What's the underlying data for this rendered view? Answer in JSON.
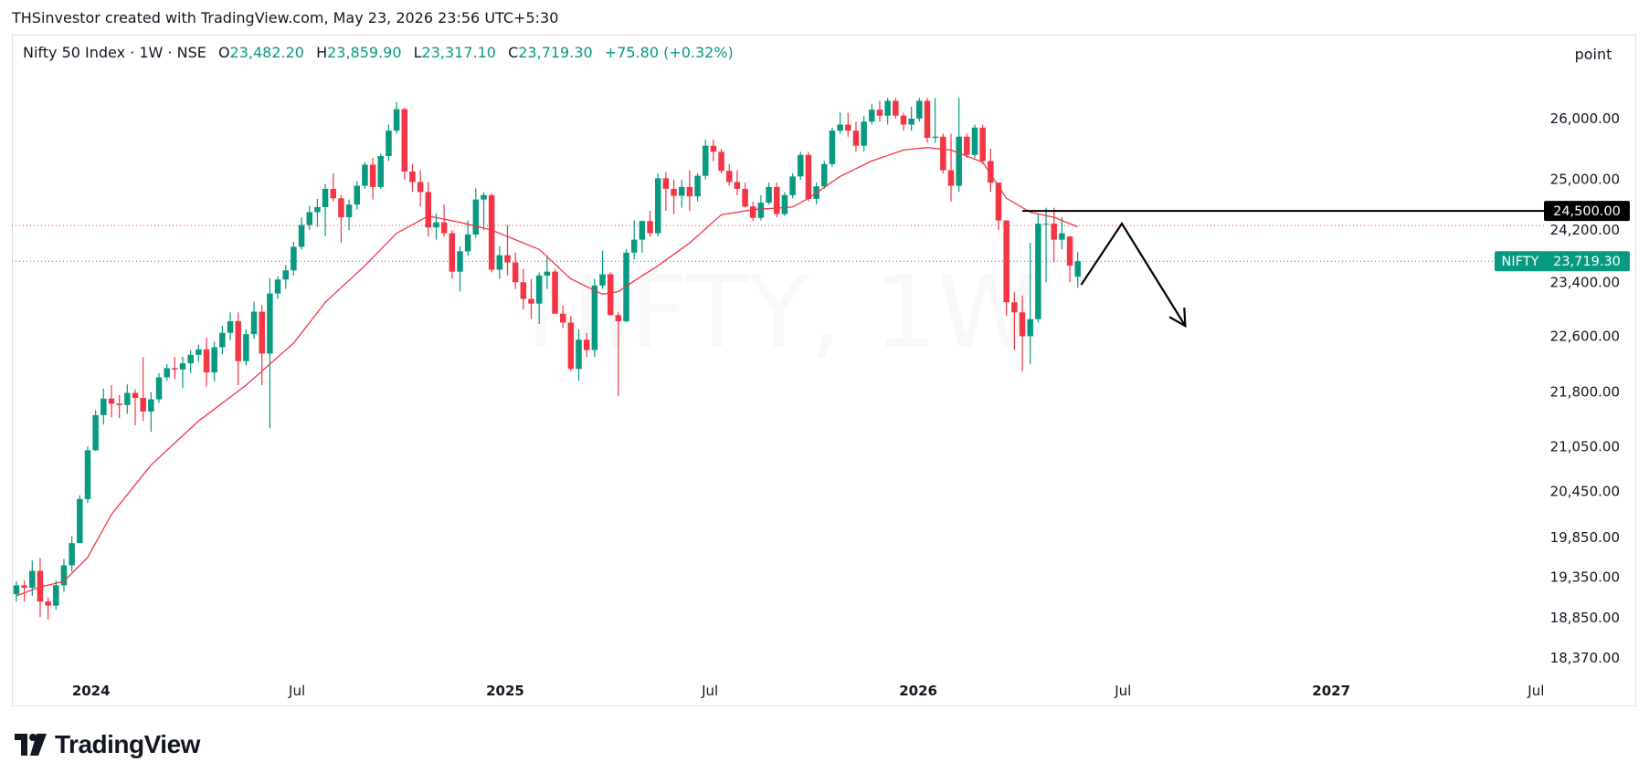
{
  "header": {
    "credit": "THSinvestor created with TradingView.com, May 23, 2026 23:56 UTC+5:30"
  },
  "legend": {
    "symbol": "Nifty 50 Index · 1W · NSE",
    "open_label": "O",
    "open": "23,482.20",
    "high_label": "H",
    "high": "23,859.90",
    "low_label": "L",
    "low": "23,317.10",
    "close_label": "C",
    "close": "23,719.30",
    "change": "+75.80 (+0.32%)"
  },
  "unit_label": "point",
  "watermark": "NIFTY, 1W",
  "brand": {
    "name": "TradingView"
  },
  "price_tags": {
    "resistance": {
      "label": "24,500.00",
      "value": 24500
    },
    "last": {
      "symbol": "NIFTY",
      "label": "23,719.30",
      "value": 23719.3
    }
  },
  "colors": {
    "up": "#089981",
    "down": "#f23645",
    "ma": "#f23645",
    "resistance": "#000000"
  },
  "chart_data": {
    "type": "candlestick",
    "y_axis": {
      "ticks": [
        26000,
        25000,
        24200,
        23400,
        22600,
        21800,
        21050,
        20450,
        19850,
        19350,
        18850,
        18370
      ],
      "tick_labels": [
        "26,000.00",
        "25,000.00",
        "24,200.00",
        "23,400.00",
        "22,600.00",
        "21,800.00",
        "21,050.00",
        "20,450.00",
        "19,850.00",
        "19,350.00",
        "18,850.00",
        "18,370.00"
      ],
      "scale": "log"
    },
    "x_axis": {
      "ticks": [
        "2024-01-01",
        "2024-07-01",
        "2025-01-01",
        "2025-07-01",
        "2026-01-01",
        "2026-07-01",
        "2027-01-01",
        "2027-07-01"
      ],
      "tick_labels": [
        "2024",
        "Jul",
        "2025",
        "Jul",
        "2026",
        "Jul",
        "2027",
        "Jul"
      ],
      "range": [
        "2023-10-23",
        "2027-07-08"
      ]
    },
    "candles": [
      [
        "2023-10-27",
        19140,
        19300,
        19050,
        19250
      ],
      [
        "2023-11-03",
        19250,
        19310,
        19050,
        19220
      ],
      [
        "2023-11-10",
        19220,
        19560,
        19120,
        19430
      ],
      [
        "2023-11-17",
        19430,
        19590,
        18860,
        19050
      ],
      [
        "2023-11-24",
        19050,
        19100,
        18830,
        19000
      ],
      [
        "2023-12-01",
        19000,
        19310,
        18950,
        19250
      ],
      [
        "2023-12-08",
        19250,
        19580,
        19170,
        19500
      ],
      [
        "2023-12-15",
        19500,
        19870,
        19420,
        19780
      ],
      [
        "2023-12-22",
        19780,
        20400,
        19780,
        20350
      ],
      [
        "2023-12-29",
        20350,
        21050,
        20300,
        21000
      ],
      [
        "2024-01-05",
        21000,
        21550,
        20990,
        21480
      ],
      [
        "2024-01-12",
        21480,
        21850,
        21350,
        21710
      ],
      [
        "2024-01-19",
        21710,
        21900,
        21450,
        21640
      ],
      [
        "2024-01-26",
        21640,
        21760,
        21440,
        21620
      ],
      [
        "2024-02-02",
        21620,
        21910,
        21500,
        21790
      ],
      [
        "2024-02-09",
        21790,
        21840,
        21340,
        21720
      ],
      [
        "2024-02-16",
        21720,
        22300,
        21400,
        21530
      ],
      [
        "2024-02-23",
        21530,
        21800,
        21250,
        21700
      ],
      [
        "2024-03-01",
        21700,
        22070,
        21650,
        22010
      ],
      [
        "2024-03-08",
        22010,
        22200,
        21960,
        22140
      ],
      [
        "2024-03-15",
        22140,
        22300,
        21980,
        22120
      ],
      [
        "2024-03-22",
        22120,
        22300,
        21860,
        22210
      ],
      [
        "2024-03-29",
        22210,
        22400,
        22070,
        22330
      ],
      [
        "2024-04-05",
        22330,
        22480,
        22230,
        22410
      ],
      [
        "2024-04-12",
        22410,
        22580,
        21880,
        22080
      ],
      [
        "2024-04-19",
        22080,
        22520,
        21950,
        22440
      ],
      [
        "2024-04-26",
        22440,
        22750,
        22340,
        22650
      ],
      [
        "2024-05-03",
        22650,
        22950,
        22540,
        22820
      ],
      [
        "2024-05-10",
        22820,
        22950,
        21900,
        22240
      ],
      [
        "2024-05-17",
        22240,
        22700,
        22180,
        22630
      ],
      [
        "2024-05-24",
        22630,
        23110,
        22560,
        22960
      ],
      [
        "2024-05-31",
        22960,
        23060,
        21900,
        22350
      ],
      [
        "2024-06-07",
        22350,
        23460,
        21300,
        23230
      ],
      [
        "2024-06-14",
        23230,
        23490,
        23150,
        23440
      ],
      [
        "2024-06-21",
        23440,
        23660,
        23300,
        23580
      ],
      [
        "2024-06-28",
        23580,
        24020,
        23500,
        23940
      ],
      [
        "2024-07-05",
        23940,
        24400,
        23900,
        24280
      ],
      [
        "2024-07-12",
        24280,
        24580,
        24200,
        24480
      ],
      [
        "2024-07-19",
        24480,
        24690,
        24250,
        24560
      ],
      [
        "2024-07-26",
        24560,
        24930,
        24100,
        24850
      ],
      [
        "2024-08-02",
        24850,
        25100,
        24650,
        24700
      ],
      [
        "2024-08-09",
        24700,
        24750,
        24000,
        24400
      ],
      [
        "2024-08-16",
        24400,
        24680,
        24200,
        24600
      ],
      [
        "2024-08-23",
        24600,
        24980,
        24520,
        24900
      ],
      [
        "2024-08-30",
        24900,
        25280,
        24850,
        25240
      ],
      [
        "2024-09-06",
        25240,
        25350,
        24680,
        24880
      ],
      [
        "2024-09-13",
        24880,
        25420,
        24850,
        25380
      ],
      [
        "2024-09-20",
        25380,
        25900,
        25300,
        25800
      ],
      [
        "2024-09-27",
        25800,
        26280,
        25750,
        26160
      ],
      [
        "2024-10-04",
        26160,
        26180,
        25000,
        25130
      ],
      [
        "2024-10-11",
        25130,
        25250,
        24800,
        24960
      ],
      [
        "2024-10-18",
        24960,
        25150,
        24570,
        24800
      ],
      [
        "2024-10-25",
        24800,
        24960,
        24100,
        24240
      ],
      [
        "2024-11-01",
        24240,
        24460,
        24050,
        24320
      ],
      [
        "2024-11-08",
        24320,
        24600,
        24100,
        24150
      ],
      [
        "2024-11-15",
        24150,
        24200,
        23450,
        23560
      ],
      [
        "2024-11-22",
        23560,
        23950,
        23260,
        23870
      ],
      [
        "2024-11-29",
        23870,
        24350,
        23800,
        24130
      ],
      [
        "2024-12-06",
        24130,
        24860,
        24080,
        24680
      ],
      [
        "2024-12-13",
        24680,
        24800,
        24200,
        24750
      ],
      [
        "2024-12-20",
        24750,
        24780,
        23550,
        23590
      ],
      [
        "2024-12-27",
        23590,
        23950,
        23450,
        23810
      ],
      [
        "2025-01-03",
        23810,
        24280,
        23500,
        23700
      ],
      [
        "2025-01-10",
        23700,
        23850,
        23300,
        23400
      ],
      [
        "2025-01-17",
        23400,
        23600,
        22990,
        23150
      ],
      [
        "2025-01-24",
        23150,
        23450,
        22850,
        23080
      ],
      [
        "2025-01-31",
        23080,
        23550,
        22780,
        23500
      ],
      [
        "2025-02-07",
        23500,
        23800,
        23300,
        23560
      ],
      [
        "2025-02-14",
        23560,
        23600,
        22950,
        22930
      ],
      [
        "2025-02-21",
        22930,
        23050,
        22720,
        22800
      ],
      [
        "2025-02-28",
        22800,
        22900,
        22100,
        22130
      ],
      [
        "2025-03-07",
        22130,
        22700,
        21960,
        22550
      ],
      [
        "2025-03-14",
        22550,
        22650,
        22300,
        22400
      ],
      [
        "2025-03-21",
        22400,
        23450,
        22300,
        23350
      ],
      [
        "2025-03-28",
        23350,
        23880,
        23300,
        23520
      ],
      [
        "2025-04-04",
        23520,
        23550,
        22900,
        22910
      ],
      [
        "2025-04-11",
        22910,
        22950,
        21750,
        22820
      ],
      [
        "2025-04-18",
        22820,
        23900,
        22800,
        23850
      ],
      [
        "2025-04-25",
        23850,
        24350,
        23750,
        24050
      ],
      [
        "2025-05-02",
        24050,
        24350,
        23850,
        24340
      ],
      [
        "2025-05-09",
        24340,
        24500,
        24100,
        24150
      ],
      [
        "2025-05-16",
        24150,
        25100,
        24100,
        25020
      ],
      [
        "2025-05-23",
        25020,
        25120,
        24500,
        24850
      ],
      [
        "2025-05-30",
        24850,
        25000,
        24450,
        24740
      ],
      [
        "2025-06-06",
        24740,
        25000,
        24550,
        24880
      ],
      [
        "2025-06-13",
        24880,
        25150,
        24500,
        24730
      ],
      [
        "2025-06-20",
        24730,
        25100,
        24650,
        25060
      ],
      [
        "2025-06-27",
        25060,
        25650,
        25000,
        25550
      ],
      [
        "2025-07-04",
        25550,
        25650,
        25300,
        25450
      ],
      [
        "2025-07-11",
        25450,
        25500,
        25100,
        25140
      ],
      [
        "2025-07-18",
        25140,
        25250,
        24900,
        24960
      ],
      [
        "2025-07-25",
        24960,
        25150,
        24750,
        24850
      ],
      [
        "2025-08-01",
        24850,
        24950,
        24550,
        24570
      ],
      [
        "2025-08-08",
        24570,
        24650,
        24340,
        24390
      ],
      [
        "2025-08-15",
        24390,
        24750,
        24350,
        24630
      ],
      [
        "2025-08-22",
        24630,
        24950,
        24600,
        24880
      ],
      [
        "2025-08-29",
        24880,
        24950,
        24400,
        24450
      ],
      [
        "2025-09-05",
        24450,
        24800,
        24420,
        24750
      ],
      [
        "2025-09-12",
        24750,
        25100,
        24700,
        25050
      ],
      [
        "2025-09-19",
        25050,
        25450,
        25000,
        25400
      ],
      [
        "2025-09-26",
        25400,
        25450,
        24650,
        24690
      ],
      [
        "2025-10-03",
        24690,
        24950,
        24600,
        24890
      ],
      [
        "2025-10-10",
        24890,
        25300,
        24850,
        25250
      ],
      [
        "2025-10-17",
        25250,
        25850,
        25200,
        25800
      ],
      [
        "2025-10-24",
        25800,
        26100,
        25750,
        25900
      ],
      [
        "2025-10-31",
        25900,
        26100,
        25700,
        25800
      ],
      [
        "2025-11-07",
        25800,
        25950,
        25450,
        25550
      ],
      [
        "2025-11-14",
        25550,
        26050,
        25450,
        25950
      ],
      [
        "2025-11-21",
        25950,
        26250,
        25900,
        26150
      ],
      [
        "2025-11-28",
        26150,
        26300,
        25950,
        26050
      ],
      [
        "2025-12-05",
        26050,
        26350,
        25900,
        26300
      ],
      [
        "2025-12-12",
        26300,
        26350,
        26000,
        26050
      ],
      [
        "2025-12-19",
        26050,
        26100,
        25800,
        25900
      ],
      [
        "2025-12-26",
        25900,
        26200,
        25800,
        26000
      ],
      [
        "2026-01-02",
        26000,
        26350,
        25950,
        26300
      ],
      [
        "2026-01-09",
        26300,
        26350,
        25600,
        25680
      ],
      [
        "2026-01-16",
        25680,
        26350,
        25600,
        25700
      ],
      [
        "2026-01-23",
        25700,
        25750,
        25100,
        25150
      ],
      [
        "2026-01-30",
        25150,
        25750,
        24650,
        24900
      ],
      [
        "2026-02-06",
        24900,
        26350,
        24800,
        25700
      ],
      [
        "2026-02-13",
        25700,
        25750,
        25350,
        25400
      ],
      [
        "2026-02-20",
        25400,
        25900,
        25350,
        25850
      ],
      [
        "2026-02-27",
        25850,
        25900,
        25250,
        25300
      ],
      [
        "2026-03-06",
        25300,
        25500,
        24800,
        24950
      ],
      [
        "2026-03-13",
        24950,
        24950,
        24200,
        24350
      ],
      [
        "2026-03-20",
        24350,
        24350,
        22900,
        23100
      ],
      [
        "2026-03-27",
        23100,
        23250,
        22400,
        22950
      ],
      [
        "2026-04-03",
        22950,
        23200,
        22100,
        22600
      ],
      [
        "2026-04-10",
        22600,
        24000,
        22200,
        22850
      ],
      [
        "2026-04-17",
        22850,
        24450,
        22800,
        24300
      ],
      [
        "2026-04-24",
        24300,
        24550,
        23400,
        24300
      ],
      [
        "2026-05-01",
        24300,
        24550,
        23700,
        24050
      ],
      [
        "2026-05-08",
        24050,
        24400,
        23900,
        24150
      ],
      [
        "2026-05-15",
        24100,
        24100,
        23400,
        23650
      ],
      [
        "2026-05-22",
        23482.2,
        23859.9,
        23317.1,
        23719.3
      ]
    ],
    "moving_average": [
      [
        "2023-10-27",
        19120
      ],
      [
        "2023-11-17",
        19230
      ],
      [
        "2023-12-08",
        19300
      ],
      [
        "2023-12-29",
        19600
      ],
      [
        "2024-01-19",
        20150
      ],
      [
        "2024-02-23",
        20800
      ],
      [
        "2024-04-05",
        21400
      ],
      [
        "2024-05-17",
        21900
      ],
      [
        "2024-06-28",
        22500
      ],
      [
        "2024-07-26",
        23100
      ],
      [
        "2024-08-30",
        23650
      ],
      [
        "2024-09-27",
        24150
      ],
      [
        "2024-10-25",
        24420
      ],
      [
        "2024-11-22",
        24320
      ],
      [
        "2024-12-20",
        24200
      ],
      [
        "2025-01-31",
        23900
      ],
      [
        "2025-02-28",
        23450
      ],
      [
        "2025-03-28",
        23220
      ],
      [
        "2025-04-11",
        23260
      ],
      [
        "2025-04-25",
        23420
      ],
      [
        "2025-05-16",
        23650
      ],
      [
        "2025-06-13",
        24000
      ],
      [
        "2025-07-11",
        24440
      ],
      [
        "2025-08-08",
        24520
      ],
      [
        "2025-09-12",
        24560
      ],
      [
        "2025-09-26",
        24700
      ],
      [
        "2025-10-24",
        25050
      ],
      [
        "2025-11-21",
        25300
      ],
      [
        "2025-12-19",
        25480
      ],
      [
        "2026-01-09",
        25520
      ],
      [
        "2026-01-30",
        25480
      ],
      [
        "2026-02-27",
        25280
      ],
      [
        "2026-03-20",
        24700
      ],
      [
        "2026-04-10",
        24480
      ],
      [
        "2026-05-01",
        24400
      ],
      [
        "2026-05-22",
        24250
      ]
    ],
    "annotations": {
      "resistance_line": {
        "value": 24500,
        "from": "2026-04-03",
        "to": "2027-07-08"
      },
      "projection": [
        [
          "2026-05-25",
          23360
        ],
        [
          "2026-06-30",
          24300
        ],
        [
          "2026-08-25",
          22750
        ]
      ]
    },
    "guide_lines": [
      24270,
      23719.3
    ]
  }
}
